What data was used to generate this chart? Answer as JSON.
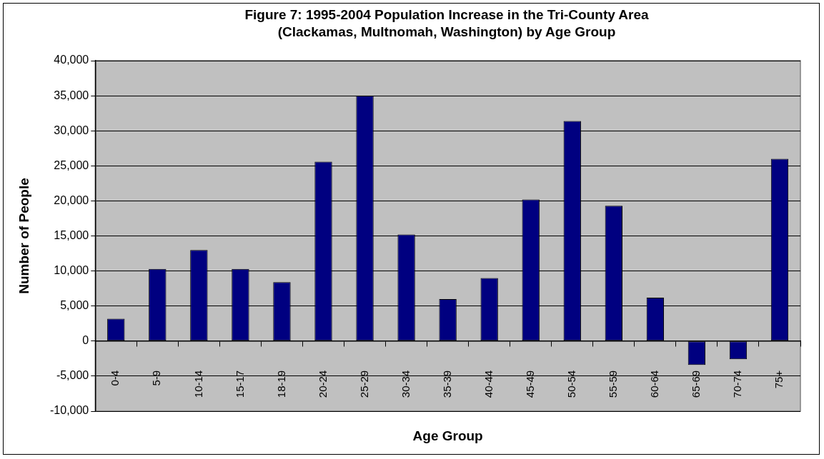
{
  "chart_data": {
    "type": "bar",
    "title": "Figure 7: 1995-2004 Population Increase in the Tri-County Area\n(Clackamas, Multnomah, Washington) by Age Group",
    "xlabel": "Age Group",
    "ylabel": "Number of People",
    "categories": [
      "0-4",
      "5-9",
      "10-14",
      "15-17",
      "18-19",
      "20-24",
      "25-29",
      "30-34",
      "35-39",
      "40-44",
      "45-49",
      "50-54",
      "55-59",
      "60-64",
      "65-69",
      "70-74",
      "75+"
    ],
    "values": [
      3200,
      10300,
      13000,
      10300,
      8400,
      25600,
      35000,
      15200,
      6000,
      9000,
      20200,
      31400,
      19300,
      6200,
      -3400,
      -2600,
      26000
    ],
    "color": "#000080",
    "ylim": [
      -10000,
      40000
    ],
    "yticks": [
      {
        "value": -10000,
        "label": "-10,000"
      },
      {
        "value": -5000,
        "label": "-5,000"
      },
      0,
      {
        "value": 5000,
        "label": "5,000"
      },
      {
        "value": 10000,
        "label": "10,000"
      },
      {
        "value": 15000,
        "label": "15,000"
      },
      {
        "value": 20000,
        "label": "20,000"
      },
      {
        "value": 25000,
        "label": "25,000"
      },
      {
        "value": 30000,
        "label": "30,000"
      },
      {
        "value": 35000,
        "label": "35,000"
      },
      {
        "value": 40000,
        "label": "40,000"
      }
    ],
    "grid": "y",
    "legend": false
  }
}
